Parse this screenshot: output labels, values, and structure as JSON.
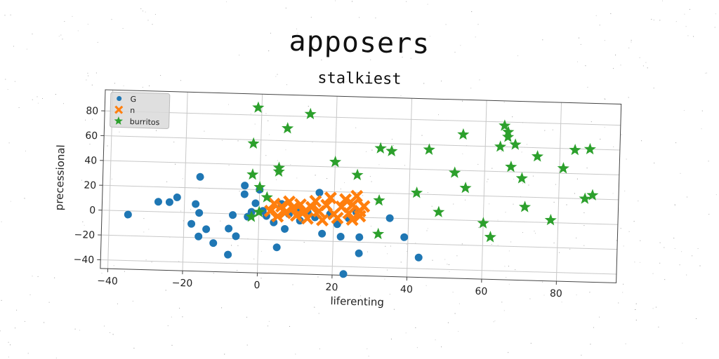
{
  "title": "apposers",
  "subtitle": "stalkiest",
  "chart_data": {
    "type": "scatter",
    "xlabel": "liferenting",
    "ylabel": "precessional",
    "xlim": [
      -42,
      96
    ],
    "ylim": [
      -47,
      97
    ],
    "xticks": [
      -40,
      -20,
      0,
      20,
      40,
      60,
      80
    ],
    "yticks": [
      -40,
      -20,
      0,
      20,
      40,
      60,
      80
    ],
    "grid": true,
    "legend_position": "top-left",
    "series": [
      {
        "name": "G",
        "marker": "circle",
        "color": "#1f77b4",
        "points": [
          [
            -35,
            -3
          ],
          [
            -27,
            8
          ],
          [
            -24,
            8
          ],
          [
            -22,
            12
          ],
          [
            -16,
            29
          ],
          [
            -17,
            7
          ],
          [
            -16,
            0
          ],
          [
            -18,
            -9
          ],
          [
            -16,
            -19
          ],
          [
            -14,
            -13
          ],
          [
            -12,
            -24
          ],
          [
            -8,
            -33
          ],
          [
            -8,
            -12
          ],
          [
            -7,
            -1
          ],
          [
            -6,
            -18
          ],
          [
            -4,
            23
          ],
          [
            -4,
            16
          ],
          [
            -3,
            -2
          ],
          [
            -2,
            2
          ],
          [
            -1,
            9
          ],
          [
            0,
            20
          ],
          [
            1,
            3
          ],
          [
            2,
            -1
          ],
          [
            4,
            -6
          ],
          [
            5,
            -26
          ],
          [
            6,
            9
          ],
          [
            7,
            -11
          ],
          [
            8,
            1
          ],
          [
            10,
            5
          ],
          [
            11,
            -4
          ],
          [
            13,
            3
          ],
          [
            15,
            -1
          ],
          [
            16,
            19
          ],
          [
            17,
            -14
          ],
          [
            19,
            2
          ],
          [
            21,
            -6
          ],
          [
            22,
            -16
          ],
          [
            23,
            -46
          ],
          [
            24,
            -1
          ],
          [
            26,
            4
          ],
          [
            27,
            -16
          ],
          [
            27,
            -29
          ],
          [
            35,
            0
          ],
          [
            39,
            -15
          ],
          [
            43,
            -31
          ]
        ]
      },
      {
        "name": "n",
        "marker": "x",
        "color": "#ff7f0e",
        "points": [
          [
            3,
            3
          ],
          [
            4,
            9
          ],
          [
            5,
            -1
          ],
          [
            6,
            7
          ],
          [
            7,
            2
          ],
          [
            8,
            11
          ],
          [
            9,
            6
          ],
          [
            10,
            0
          ],
          [
            11,
            9
          ],
          [
            12,
            3
          ],
          [
            13,
            -2
          ],
          [
            14,
            7
          ],
          [
            15,
            12
          ],
          [
            16,
            4
          ],
          [
            17,
            -3
          ],
          [
            18,
            9
          ],
          [
            19,
            15
          ],
          [
            20,
            2
          ],
          [
            21,
            -1
          ],
          [
            22,
            8
          ],
          [
            23,
            14
          ],
          [
            24,
            3
          ],
          [
            25,
            -2
          ],
          [
            25,
            10
          ],
          [
            26,
            17
          ],
          [
            27,
            5
          ],
          [
            27,
            1
          ],
          [
            28,
            9
          ]
        ]
      },
      {
        "name": "burritos",
        "marker": "star",
        "color": "#2ca02c",
        "points": [
          [
            -1,
            86
          ],
          [
            -2,
            57
          ],
          [
            -2,
            32
          ],
          [
            -2,
            -2
          ],
          [
            0,
            2
          ],
          [
            0,
            22
          ],
          [
            2,
            14
          ],
          [
            5,
            38
          ],
          [
            5,
            35
          ],
          [
            7,
            70
          ],
          [
            13,
            82
          ],
          [
            20,
            44
          ],
          [
            26,
            34
          ],
          [
            32,
            -13
          ],
          [
            32,
            14
          ],
          [
            32,
            56
          ],
          [
            35,
            54
          ],
          [
            42,
            21
          ],
          [
            45,
            56
          ],
          [
            48,
            6
          ],
          [
            52,
            38
          ],
          [
            54,
            69
          ],
          [
            55,
            26
          ],
          [
            60,
            -2
          ],
          [
            62,
            -13
          ],
          [
            64,
            60
          ],
          [
            65,
            77
          ],
          [
            66,
            72
          ],
          [
            66,
            68
          ],
          [
            67,
            44
          ],
          [
            68,
            62
          ],
          [
            70,
            35
          ],
          [
            71,
            12
          ],
          [
            74,
            53
          ],
          [
            78,
            2
          ],
          [
            81,
            44
          ],
          [
            84,
            59
          ],
          [
            87,
            20
          ],
          [
            88,
            60
          ],
          [
            89,
            23
          ]
        ]
      }
    ]
  }
}
